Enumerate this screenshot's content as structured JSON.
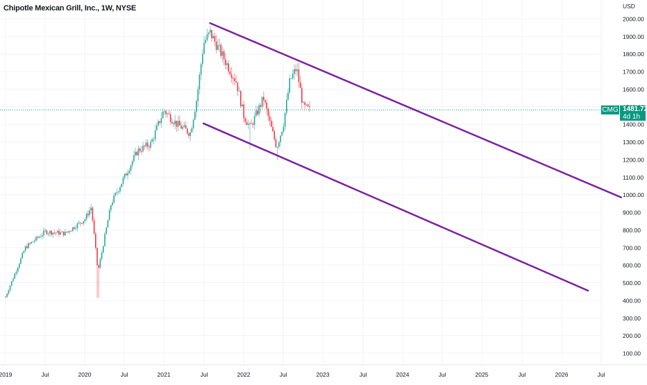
{
  "header": {
    "title": "Chipotle Mexican Grill, Inc., 1W, NYSE"
  },
  "price_axis": {
    "currency": "USD",
    "labels": [
      "2000.00",
      "1900.00",
      "1800.00",
      "1700.00",
      "1600.00",
      "1500.00",
      "1400.00",
      "1300.00",
      "1200.00",
      "1100.00",
      "1000.00",
      "900.00",
      "800.00",
      "700.00",
      "600.00",
      "500.00",
      "400.00",
      "300.00",
      "200.00",
      "100.00"
    ]
  },
  "time_axis": {
    "labels": [
      "2019",
      "Jul",
      "2020",
      "Jul",
      "2021",
      "Jul",
      "2022",
      "Jul",
      "2023",
      "Jul",
      "2024",
      "Jul",
      "2025",
      "Jul",
      "2026",
      "Jul"
    ]
  },
  "current_price": {
    "symbol": "CMG",
    "value": "1481.72",
    "countdown": "4d 1h",
    "color": "#089981"
  },
  "colors": {
    "up": "#26a69a",
    "down": "#f23645",
    "trendline": "#7b1fa2",
    "grid": "#f0f3fa"
  },
  "chart_data": {
    "type": "candlestick",
    "title": "Chipotle Mexican Grill, Inc., 1W, NYSE",
    "xlabel": "",
    "ylabel": "USD",
    "ylim": [
      0,
      2050
    ],
    "grid": true,
    "x_ticks": [
      "2019",
      "Jul",
      "2020",
      "Jul",
      "2021",
      "Jul",
      "2022",
      "Jul",
      "2023",
      "Jul",
      "2024",
      "Jul",
      "2025",
      "Jul",
      "2026",
      "Jul"
    ],
    "y_ticks": [
      100,
      200,
      300,
      400,
      500,
      600,
      700,
      800,
      900,
      1000,
      1100,
      1200,
      1300,
      1400,
      1500,
      1600,
      1700,
      1800,
      1900,
      2000
    ],
    "last_price": 1481.72,
    "approx_path": [
      {
        "date": "2019-01",
        "price": 420
      },
      {
        "date": "2019-04",
        "price": 700
      },
      {
        "date": "2019-07",
        "price": 790
      },
      {
        "date": "2019-10",
        "price": 780
      },
      {
        "date": "2020-01",
        "price": 860
      },
      {
        "date": "2020-02",
        "price": 930
      },
      {
        "date": "2020-03",
        "price": 560,
        "low": 415
      },
      {
        "date": "2020-05",
        "price": 950
      },
      {
        "date": "2020-07",
        "price": 1100
      },
      {
        "date": "2020-09",
        "price": 1250
      },
      {
        "date": "2020-11",
        "price": 1290
      },
      {
        "date": "2021-01",
        "price": 1480
      },
      {
        "date": "2021-03",
        "price": 1400
      },
      {
        "date": "2021-05",
        "price": 1350
      },
      {
        "date": "2021-06",
        "price": 1550
      },
      {
        "date": "2021-07",
        "price": 1860
      },
      {
        "date": "2021-08",
        "price": 1920,
        "high": 1958
      },
      {
        "date": "2021-10",
        "price": 1780
      },
      {
        "date": "2021-12",
        "price": 1640
      },
      {
        "date": "2022-01",
        "price": 1450
      },
      {
        "date": "2022-02",
        "price": 1380,
        "low": 1260
      },
      {
        "date": "2022-04",
        "price": 1550
      },
      {
        "date": "2022-05",
        "price": 1400
      },
      {
        "date": "2022-06",
        "price": 1270,
        "low": 1196
      },
      {
        "date": "2022-07",
        "price": 1400
      },
      {
        "date": "2022-08",
        "price": 1650
      },
      {
        "date": "2022-09",
        "price": 1720,
        "high": 1750
      },
      {
        "date": "2022-10",
        "price": 1500
      },
      {
        "date": "2022-11",
        "price": 1481.72
      }
    ],
    "annotations": [
      {
        "type": "trendline",
        "label": "upper channel",
        "from": {
          "date": "2021-08",
          "price": 1975
        },
        "to": {
          "date": "2026-10",
          "price": 985
        }
      },
      {
        "type": "trendline",
        "label": "lower channel",
        "from": {
          "date": "2021-07",
          "price": 1405
        },
        "to": {
          "date": "2026-05",
          "price": 455
        }
      }
    ]
  }
}
